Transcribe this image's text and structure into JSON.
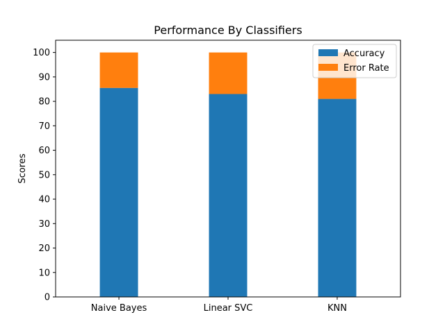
{
  "chart_data": {
    "type": "bar",
    "stacked": true,
    "title": "Performance By Classifiers",
    "xlabel": "",
    "ylabel": "Scores",
    "categories": [
      "Naive Bayes",
      "Linear SVC",
      "KNN"
    ],
    "series": [
      {
        "name": "Accuracy",
        "color": "#1f77b4",
        "values": [
          85.5,
          83.0,
          81.0
        ]
      },
      {
        "name": "Error Rate",
        "color": "#ff7f0e",
        "values": [
          14.5,
          17.0,
          19.0
        ]
      }
    ],
    "ylim": [
      0,
      105
    ],
    "yticks": [
      0,
      10,
      20,
      30,
      40,
      50,
      60,
      70,
      80,
      90,
      100
    ],
    "grid": false,
    "legend_position": "top-right"
  }
}
